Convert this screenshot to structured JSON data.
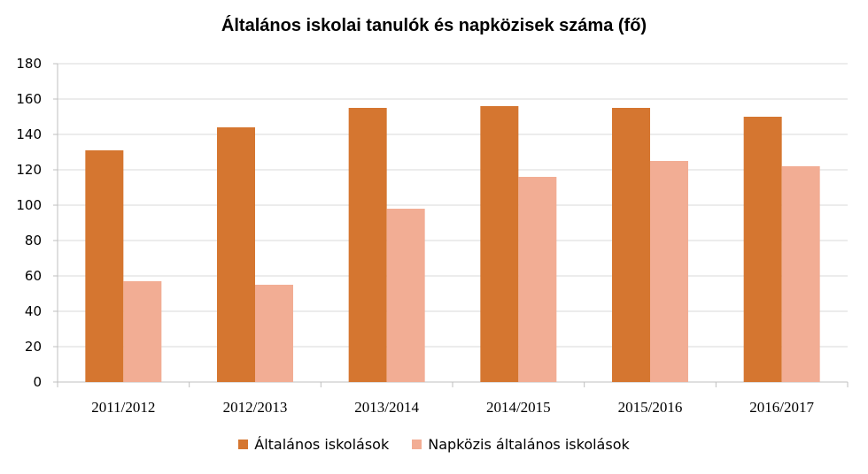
{
  "chart_data": {
    "type": "bar",
    "title": "Általános iskolai tanulók és napközisek száma (fő)",
    "xlabel": "",
    "ylabel": "",
    "categories": [
      "2011/2012",
      "2012/2013",
      "2013/2014",
      "2014/2015",
      "2015/2016",
      "2016/2017"
    ],
    "series": [
      {
        "name": "Általános iskolások",
        "color": "#D57630",
        "values": [
          131,
          144,
          155,
          156,
          155,
          150
        ]
      },
      {
        "name": "Napközis általános iskolások",
        "color": "#F2AD94",
        "values": [
          57,
          55,
          98,
          116,
          125,
          122
        ]
      }
    ],
    "ylim": [
      0,
      180
    ],
    "yticks": [
      0,
      20,
      40,
      60,
      80,
      100,
      120,
      140,
      160,
      180
    ],
    "grid": true,
    "legend_position": "bottom"
  }
}
